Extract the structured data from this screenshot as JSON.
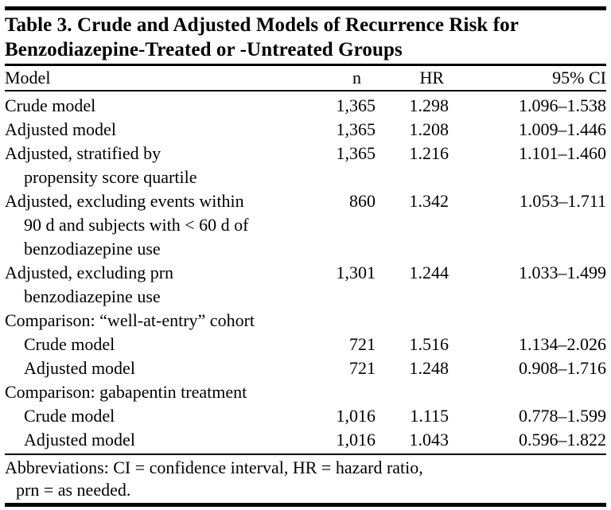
{
  "table": {
    "title": "Table 3. Crude and Adjusted Models of Recurrence Risk for\nBenzodiazepine-Treated or -Untreated Groups",
    "columns": {
      "model": "Model",
      "n": "n",
      "hr": "HR",
      "ci": "95% CI"
    },
    "rows": [
      {
        "model": "Crude model",
        "n": "1,365",
        "hr": "1.298",
        "ci": "1.096–1.538"
      },
      {
        "model": "Adjusted model",
        "n": "1,365",
        "hr": "1.208",
        "ci": "1.009–1.446"
      },
      {
        "model": "Adjusted, stratified by\npropensity score quartile",
        "n": "1,365",
        "hr": "1.216",
        "ci": "1.101–1.460"
      },
      {
        "model": "Adjusted, excluding events within\n90 d and subjects with < 60 d of\nbenzodiazepine use",
        "n": "860",
        "hr": "1.342",
        "ci": "1.053–1.711"
      },
      {
        "model": "Adjusted, excluding prn\nbenzodiazepine use",
        "n": "1,301",
        "hr": "1.244",
        "ci": "1.033–1.499"
      },
      {
        "model": "Comparison: “well-at-entry” cohort",
        "n": "",
        "hr": "",
        "ci": ""
      },
      {
        "model": "Crude model",
        "n": "721",
        "hr": "1.516",
        "ci": "1.134–2.026"
      },
      {
        "model": "Adjusted model",
        "n": "721",
        "hr": "1.248",
        "ci": "0.908–1.716"
      },
      {
        "model": "Comparison: gabapentin treatment",
        "n": "",
        "hr": "",
        "ci": ""
      },
      {
        "model": "Crude model",
        "n": "1,016",
        "hr": "1.115",
        "ci": "0.778–1.599"
      },
      {
        "model": "Adjusted model",
        "n": "1,016",
        "hr": "1.043",
        "ci": "0.596–1.822"
      }
    ],
    "footnote": "Abbreviations: CI = confidence interval, HR = hazard ratio,\nprn = as needed."
  }
}
